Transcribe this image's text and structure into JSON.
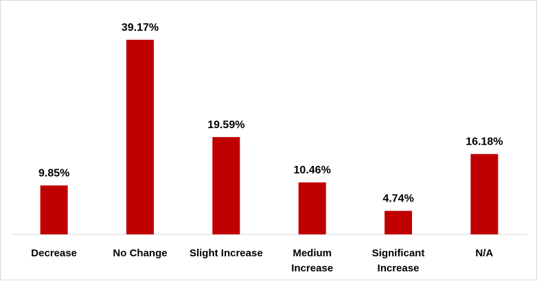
{
  "chart_data": {
    "type": "bar",
    "categories": [
      [
        "Decrease"
      ],
      [
        "No Change"
      ],
      [
        "Slight Increase"
      ],
      [
        "Medium",
        "Increase"
      ],
      [
        "Significant",
        "Increase"
      ],
      [
        "N/A"
      ]
    ],
    "values": [
      9.85,
      39.17,
      19.59,
      10.46,
      4.74,
      16.18
    ],
    "value_labels": [
      "9.85%",
      "39.17%",
      "19.59%",
      "10.46%",
      "4.74%",
      "16.18%"
    ],
    "title": "",
    "xlabel": "",
    "ylabel": "",
    "ylim": [
      0,
      40
    ],
    "grid": false,
    "legend": "none",
    "bar_color": "#C00000",
    "axis_color": "#d9d9d9"
  }
}
